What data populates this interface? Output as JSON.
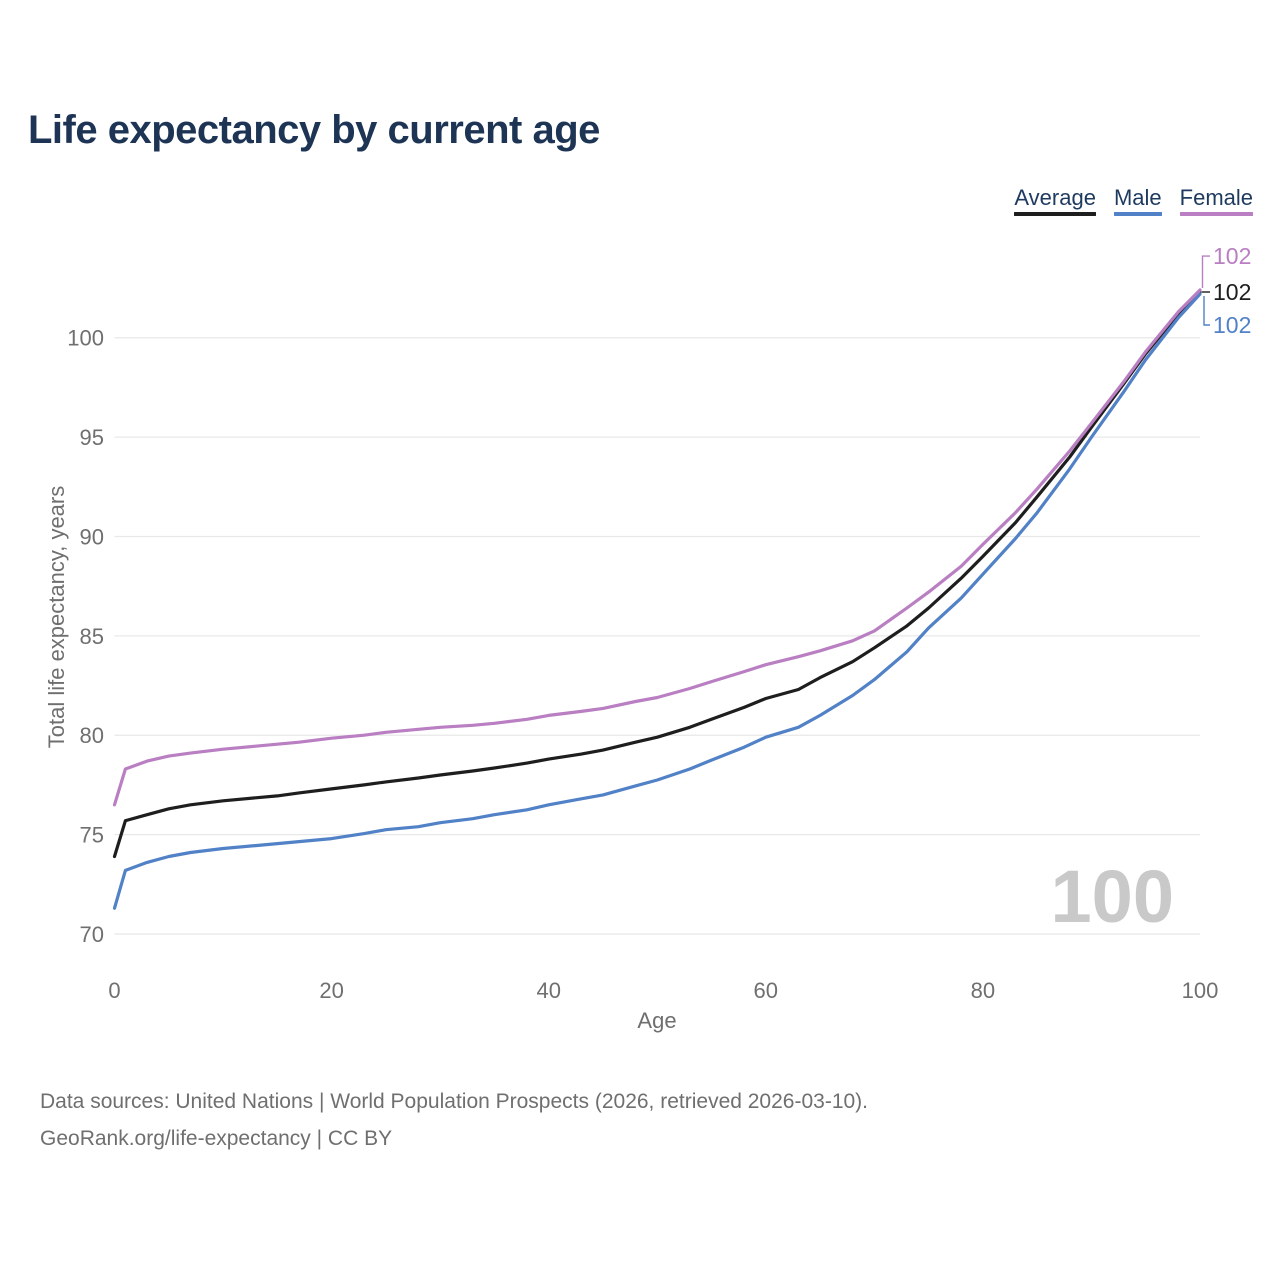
{
  "header": {
    "title": "Life expectancy by current age"
  },
  "legend": {
    "items": [
      {
        "label": "Average",
        "color": "#1e1e1e"
      },
      {
        "label": "Male",
        "color": "#5181c6"
      },
      {
        "label": "Female",
        "color": "#b97fc2"
      }
    ]
  },
  "chart_data": {
    "type": "line",
    "title": "Life expectancy by current age",
    "xlabel": "Age",
    "ylabel": "Total life expectancy, years",
    "xlim": [
      0,
      100
    ],
    "ylim": [
      70,
      103
    ],
    "xticks": [
      0,
      20,
      40,
      60,
      80,
      100
    ],
    "yticks": [
      70,
      75,
      80,
      85,
      90,
      95,
      100
    ],
    "grid": "horizontal",
    "legend_position": "top-right",
    "watermark": "100",
    "x": [
      0,
      1,
      3,
      5,
      7,
      10,
      13,
      15,
      17,
      20,
      23,
      25,
      28,
      30,
      33,
      35,
      38,
      40,
      43,
      45,
      48,
      50,
      53,
      55,
      58,
      60,
      63,
      65,
      68,
      70,
      73,
      75,
      78,
      80,
      83,
      85,
      88,
      90,
      93,
      95,
      98,
      100
    ],
    "series": [
      {
        "name": "Average",
        "color": "#1e1e1e",
        "end_label": "102",
        "values": [
          73.9,
          75.7,
          76.0,
          76.3,
          76.5,
          76.7,
          76.85,
          76.95,
          77.1,
          77.3,
          77.5,
          77.65,
          77.85,
          78.0,
          78.2,
          78.35,
          78.6,
          78.8,
          79.05,
          79.25,
          79.65,
          79.9,
          80.4,
          80.8,
          81.4,
          81.85,
          82.3,
          82.9,
          83.7,
          84.4,
          85.5,
          86.4,
          87.9,
          89.0,
          90.7,
          92.0,
          94.0,
          95.5,
          97.7,
          99.2,
          101.2,
          102.3
        ]
      },
      {
        "name": "Male",
        "color": "#5181c6",
        "end_label": "102",
        "values": [
          71.3,
          73.2,
          73.6,
          73.9,
          74.1,
          74.3,
          74.45,
          74.55,
          74.65,
          74.8,
          75.05,
          75.25,
          75.4,
          75.6,
          75.8,
          76.0,
          76.25,
          76.5,
          76.8,
          77.0,
          77.45,
          77.75,
          78.3,
          78.75,
          79.4,
          79.9,
          80.4,
          81.0,
          82.0,
          82.8,
          84.2,
          85.4,
          86.9,
          88.1,
          89.9,
          91.2,
          93.4,
          95.0,
          97.3,
          98.9,
          101.0,
          102.2
        ]
      },
      {
        "name": "Female",
        "color": "#b97fc2",
        "end_label": "102",
        "values": [
          76.5,
          78.3,
          78.7,
          78.95,
          79.1,
          79.3,
          79.45,
          79.55,
          79.65,
          79.85,
          80.0,
          80.15,
          80.3,
          80.4,
          80.5,
          80.6,
          80.8,
          81.0,
          81.2,
          81.35,
          81.7,
          81.9,
          82.35,
          82.7,
          83.2,
          83.55,
          83.95,
          84.25,
          84.75,
          85.25,
          86.4,
          87.2,
          88.5,
          89.6,
          91.2,
          92.4,
          94.3,
          95.7,
          97.8,
          99.3,
          101.3,
          102.4
        ]
      }
    ]
  },
  "colors": {
    "title": "#1d3455",
    "legend_text": "#1e3a5f",
    "axis_text": "#6f6f6f",
    "gridline": "#e8e8e8",
    "watermark": "#c9c9c9"
  },
  "footer": {
    "line1": "Data sources: United Nations | World Population Prospects (2026, retrieved 2026-03-10).",
    "line2": "GeoRank.org/life-expectancy | CC BY"
  }
}
